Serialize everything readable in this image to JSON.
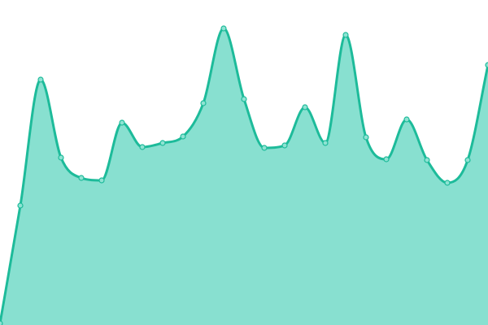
{
  "chart_data": {
    "type": "area",
    "title": "",
    "xlabel": "",
    "ylabel": "",
    "x": [
      0,
      1,
      2,
      3,
      4,
      5,
      6,
      7,
      8,
      9,
      10,
      11,
      12,
      13,
      14,
      15,
      16,
      17,
      18,
      19,
      20,
      21,
      22,
      23,
      24
    ],
    "values": [
      2,
      147,
      302,
      206,
      181,
      178,
      249,
      219,
      224,
      232,
      273,
      365,
      278,
      218,
      221,
      268,
      224,
      357,
      231,
      204,
      253,
      203,
      175,
      203,
      320
    ],
    "ylim": [
      0,
      400
    ],
    "xlim": [
      0,
      24
    ],
    "grid": false,
    "axes_visible": false,
    "legend": "none",
    "curve": "smooth",
    "colors": {
      "line": "#1dbb9a",
      "fill": "#88e0d0",
      "marker_fill": "#8fe3d3",
      "marker_stroke": "#1dbb9a"
    }
  }
}
